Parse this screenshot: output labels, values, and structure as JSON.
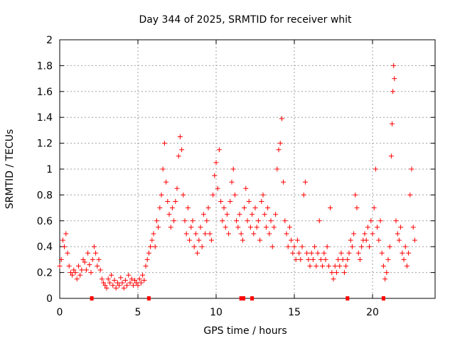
{
  "chart_data": {
    "type": "scatter",
    "title": "Day 344 of 2025, SRMTID for receiver whit",
    "xlabel": "GPS time / hours",
    "ylabel": "SRMTID / TECUs",
    "xlim": [
      0,
      24
    ],
    "ylim": [
      0,
      2
    ],
    "x_ticks": [
      0,
      5,
      10,
      15,
      20
    ],
    "x_tick_labels": [
      "0",
      "5",
      "10",
      "15",
      "20"
    ],
    "y_ticks": [
      0,
      0.2,
      0.4,
      0.6,
      0.8,
      1.0,
      1.2,
      1.4,
      1.6,
      1.8,
      2.0
    ],
    "y_tick_labels": [
      "0",
      "0.2",
      "0.4",
      "0.6",
      "0.8",
      "1",
      "1.2",
      "1.4",
      "1.6",
      "1.8",
      "2"
    ],
    "grid": true,
    "marker": "+",
    "color": "#ff0000",
    "series": [
      {
        "name": "SRMTID",
        "points": [
          [
            0.0,
            0.25
          ],
          [
            0.1,
            0.3
          ],
          [
            0.2,
            0.45
          ],
          [
            0.3,
            0.4
          ],
          [
            0.4,
            0.5
          ],
          [
            0.5,
            0.35
          ],
          [
            0.6,
            0.25
          ],
          [
            0.7,
            0.2
          ],
          [
            0.8,
            0.18
          ],
          [
            0.9,
            0.22
          ],
          [
            1.0,
            0.2
          ],
          [
            1.1,
            0.15
          ],
          [
            1.2,
            0.25
          ],
          [
            1.3,
            0.18
          ],
          [
            1.4,
            0.22
          ],
          [
            1.5,
            0.3
          ],
          [
            1.6,
            0.28
          ],
          [
            1.7,
            0.22
          ],
          [
            1.8,
            0.35
          ],
          [
            1.9,
            0.26
          ],
          [
            2.0,
            0.2
          ],
          [
            2.1,
            0.3
          ],
          [
            2.2,
            0.4
          ],
          [
            2.3,
            0.35
          ],
          [
            2.4,
            0.25
          ],
          [
            2.5,
            0.3
          ],
          [
            2.6,
            0.22
          ],
          [
            2.7,
            0.15
          ],
          [
            2.8,
            0.12
          ],
          [
            2.9,
            0.1
          ],
          [
            3.0,
            0.08
          ],
          [
            3.1,
            0.15
          ],
          [
            3.2,
            0.12
          ],
          [
            3.3,
            0.18
          ],
          [
            3.4,
            0.1
          ],
          [
            3.5,
            0.14
          ],
          [
            3.6,
            0.08
          ],
          [
            3.7,
            0.12
          ],
          [
            3.8,
            0.1
          ],
          [
            3.9,
            0.16
          ],
          [
            4.0,
            0.12
          ],
          [
            4.1,
            0.08
          ],
          [
            4.2,
            0.14
          ],
          [
            4.3,
            0.1
          ],
          [
            4.4,
            0.18
          ],
          [
            4.5,
            0.12
          ],
          [
            4.6,
            0.15
          ],
          [
            4.7,
            0.1
          ],
          [
            4.8,
            0.14
          ],
          [
            4.9,
            0.12
          ],
          [
            5.0,
            0.1
          ],
          [
            5.1,
            0.15
          ],
          [
            5.2,
            0.12
          ],
          [
            5.3,
            0.18
          ],
          [
            5.4,
            0.14
          ],
          [
            5.5,
            0.25
          ],
          [
            5.6,
            0.3
          ],
          [
            5.7,
            0.35
          ],
          [
            5.8,
            0.4
          ],
          [
            5.9,
            0.45
          ],
          [
            6.0,
            0.5
          ],
          [
            6.1,
            0.4
          ],
          [
            6.2,
            0.6
          ],
          [
            6.3,
            0.55
          ],
          [
            6.4,
            0.7
          ],
          [
            6.5,
            0.8
          ],
          [
            6.6,
            1.0
          ],
          [
            6.7,
            1.2
          ],
          [
            6.8,
            0.9
          ],
          [
            6.9,
            0.75
          ],
          [
            7.0,
            0.65
          ],
          [
            7.1,
            0.55
          ],
          [
            7.2,
            0.7
          ],
          [
            7.3,
            0.6
          ],
          [
            7.4,
            0.75
          ],
          [
            7.5,
            0.85
          ],
          [
            7.6,
            1.1
          ],
          [
            7.7,
            1.25
          ],
          [
            7.8,
            1.15
          ],
          [
            7.9,
            0.8
          ],
          [
            8.0,
            0.6
          ],
          [
            8.1,
            0.5
          ],
          [
            8.2,
            0.7
          ],
          [
            8.3,
            0.45
          ],
          [
            8.4,
            0.55
          ],
          [
            8.5,
            0.6
          ],
          [
            8.6,
            0.4
          ],
          [
            8.7,
            0.5
          ],
          [
            8.8,
            0.35
          ],
          [
            8.9,
            0.45
          ],
          [
            9.0,
            0.55
          ],
          [
            9.1,
            0.4
          ],
          [
            9.2,
            0.65
          ],
          [
            9.3,
            0.5
          ],
          [
            9.4,
            0.6
          ],
          [
            9.5,
            0.7
          ],
          [
            9.6,
            0.5
          ],
          [
            9.7,
            0.45
          ],
          [
            9.8,
            0.8
          ],
          [
            9.9,
            0.95
          ],
          [
            10.0,
            1.05
          ],
          [
            10.1,
            0.85
          ],
          [
            10.2,
            1.15
          ],
          [
            10.3,
            0.75
          ],
          [
            10.4,
            0.6
          ],
          [
            10.5,
            0.7
          ],
          [
            10.6,
            0.55
          ],
          [
            10.7,
            0.65
          ],
          [
            10.8,
            0.5
          ],
          [
            10.9,
            0.75
          ],
          [
            11.0,
            0.9
          ],
          [
            11.1,
            1.0
          ],
          [
            11.2,
            0.8
          ],
          [
            11.3,
            0.6
          ],
          [
            11.4,
            0.55
          ],
          [
            11.5,
            0.65
          ],
          [
            11.6,
            0.5
          ],
          [
            11.7,
            0.45
          ],
          [
            11.8,
            0.7
          ],
          [
            11.9,
            0.85
          ],
          [
            12.0,
            0.6
          ],
          [
            12.1,
            0.75
          ],
          [
            12.2,
            0.55
          ],
          [
            12.3,
            0.65
          ],
          [
            12.4,
            0.5
          ],
          [
            12.5,
            0.7
          ],
          [
            12.6,
            0.55
          ],
          [
            12.7,
            0.6
          ],
          [
            12.8,
            0.45
          ],
          [
            12.9,
            0.75
          ],
          [
            13.0,
            0.8
          ],
          [
            13.1,
            0.65
          ],
          [
            13.2,
            0.55
          ],
          [
            13.3,
            0.7
          ],
          [
            13.4,
            0.5
          ],
          [
            13.5,
            0.6
          ],
          [
            13.6,
            0.4
          ],
          [
            13.7,
            0.55
          ],
          [
            13.8,
            0.65
          ],
          [
            13.9,
            1.0
          ],
          [
            14.0,
            1.15
          ],
          [
            14.1,
            1.2
          ],
          [
            14.2,
            1.39
          ],
          [
            14.3,
            0.9
          ],
          [
            14.4,
            0.6
          ],
          [
            14.5,
            0.5
          ],
          [
            14.6,
            0.4
          ],
          [
            14.7,
            0.55
          ],
          [
            14.8,
            0.45
          ],
          [
            14.9,
            0.35
          ],
          [
            15.0,
            0.4
          ],
          [
            15.1,
            0.3
          ],
          [
            15.2,
            0.45
          ],
          [
            15.3,
            0.35
          ],
          [
            15.4,
            0.3
          ],
          [
            15.5,
            0.4
          ],
          [
            15.6,
            0.8
          ],
          [
            15.7,
            0.9
          ],
          [
            15.8,
            0.35
          ],
          [
            15.9,
            0.3
          ],
          [
            16.0,
            0.25
          ],
          [
            16.1,
            0.35
          ],
          [
            16.2,
            0.3
          ],
          [
            16.3,
            0.4
          ],
          [
            16.4,
            0.25
          ],
          [
            16.5,
            0.35
          ],
          [
            16.6,
            0.6
          ],
          [
            16.7,
            0.3
          ],
          [
            16.8,
            0.25
          ],
          [
            16.9,
            0.35
          ],
          [
            17.0,
            0.3
          ],
          [
            17.1,
            0.4
          ],
          [
            17.2,
            0.25
          ],
          [
            17.3,
            0.7
          ],
          [
            17.4,
            0.2
          ],
          [
            17.5,
            0.15
          ],
          [
            17.6,
            0.25
          ],
          [
            17.7,
            0.2
          ],
          [
            17.8,
            0.3
          ],
          [
            17.9,
            0.25
          ],
          [
            18.0,
            0.35
          ],
          [
            18.1,
            0.3
          ],
          [
            18.2,
            0.2
          ],
          [
            18.3,
            0.25
          ],
          [
            18.4,
            0.3
          ],
          [
            18.5,
            0.35
          ],
          [
            18.6,
            0.45
          ],
          [
            18.7,
            0.4
          ],
          [
            18.8,
            0.5
          ],
          [
            18.9,
            0.8
          ],
          [
            19.0,
            0.7
          ],
          [
            19.1,
            0.35
          ],
          [
            19.2,
            0.3
          ],
          [
            19.3,
            0.4
          ],
          [
            19.4,
            0.45
          ],
          [
            19.5,
            0.5
          ],
          [
            19.6,
            0.45
          ],
          [
            19.7,
            0.55
          ],
          [
            19.8,
            0.4
          ],
          [
            19.9,
            0.6
          ],
          [
            20.0,
            0.5
          ],
          [
            20.1,
            0.7
          ],
          [
            20.2,
            1.0
          ],
          [
            20.3,
            0.55
          ],
          [
            20.4,
            0.45
          ],
          [
            20.5,
            0.6
          ],
          [
            20.6,
            0.35
          ],
          [
            20.7,
            0.25
          ],
          [
            20.8,
            0.15
          ],
          [
            20.9,
            0.2
          ],
          [
            21.0,
            0.3
          ],
          [
            21.1,
            0.4
          ],
          [
            21.2,
            1.1
          ],
          [
            21.25,
            1.35
          ],
          [
            21.3,
            1.6
          ],
          [
            21.35,
            1.8
          ],
          [
            21.4,
            1.7
          ],
          [
            21.5,
            0.6
          ],
          [
            21.6,
            0.5
          ],
          [
            21.7,
            0.45
          ],
          [
            21.8,
            0.55
          ],
          [
            21.9,
            0.35
          ],
          [
            22.0,
            0.3
          ],
          [
            22.1,
            0.4
          ],
          [
            22.2,
            0.25
          ],
          [
            22.3,
            0.35
          ],
          [
            22.4,
            0.8
          ],
          [
            22.5,
            1.0
          ],
          [
            22.6,
            0.55
          ],
          [
            22.7,
            0.45
          ]
        ]
      }
    ],
    "data_gaps_x": [
      2.05,
      5.7,
      11.6,
      11.75,
      12.3,
      18.4,
      20.7
    ]
  }
}
